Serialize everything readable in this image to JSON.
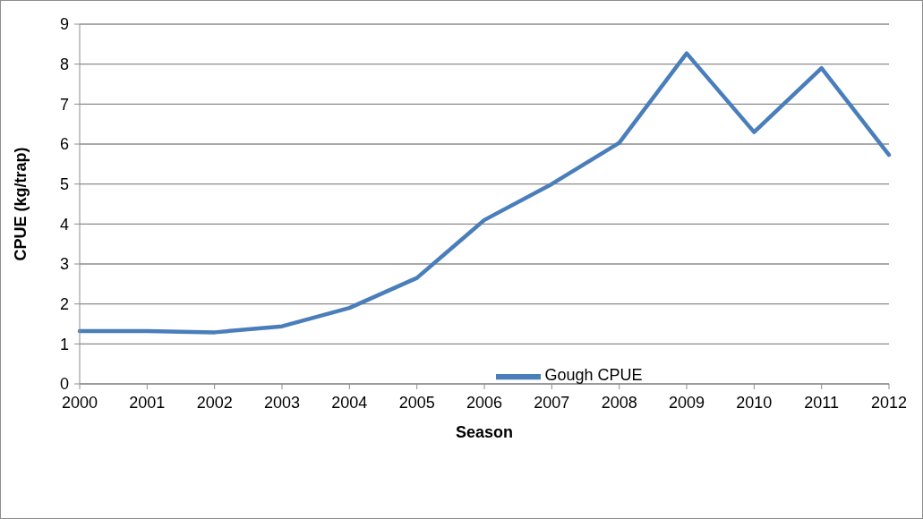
{
  "chart_data": {
    "type": "line",
    "xlabel": "Season",
    "ylabel": "CPUE (kg/trap)",
    "categories": [
      "2000",
      "2001",
      "2002",
      "2003",
      "2004",
      "2005",
      "2006",
      "2007",
      "2008",
      "2009",
      "2010",
      "2011",
      "2012"
    ],
    "series": [
      {
        "name": "Gough CPUE",
        "color": "#4a7ebb",
        "values": [
          1.32,
          1.32,
          1.29,
          1.44,
          1.9,
          2.65,
          4.1,
          5.0,
          6.03,
          8.27,
          6.3,
          7.9,
          5.73
        ]
      }
    ],
    "ylim": [
      0,
      9
    ],
    "yticks": [
      0,
      1,
      2,
      3,
      4,
      5,
      6,
      7,
      8,
      9
    ],
    "grid": "y",
    "legend": "bottom",
    "marker": "none",
    "line_style": "solid"
  }
}
